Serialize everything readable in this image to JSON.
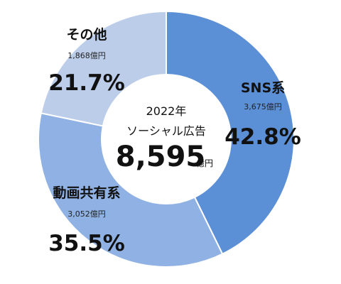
{
  "chart_data": {
    "type": "pie",
    "donut": true,
    "categories": [
      "SNS系",
      "動画共有系",
      "その他"
    ],
    "values": [
      3675,
      3052,
      1868
    ],
    "percent_labels": [
      "42.8%",
      "35.5%",
      "21.7%"
    ],
    "amount_labels": [
      "3,675億円",
      "3,052億円",
      "1,868億円"
    ],
    "colors": [
      "#5b8fd6",
      "#8fb1e3",
      "#bccde9"
    ],
    "center": {
      "year": "2022年",
      "label": "ソーシャル広告",
      "total": "8,595",
      "unit": "億円"
    }
  }
}
